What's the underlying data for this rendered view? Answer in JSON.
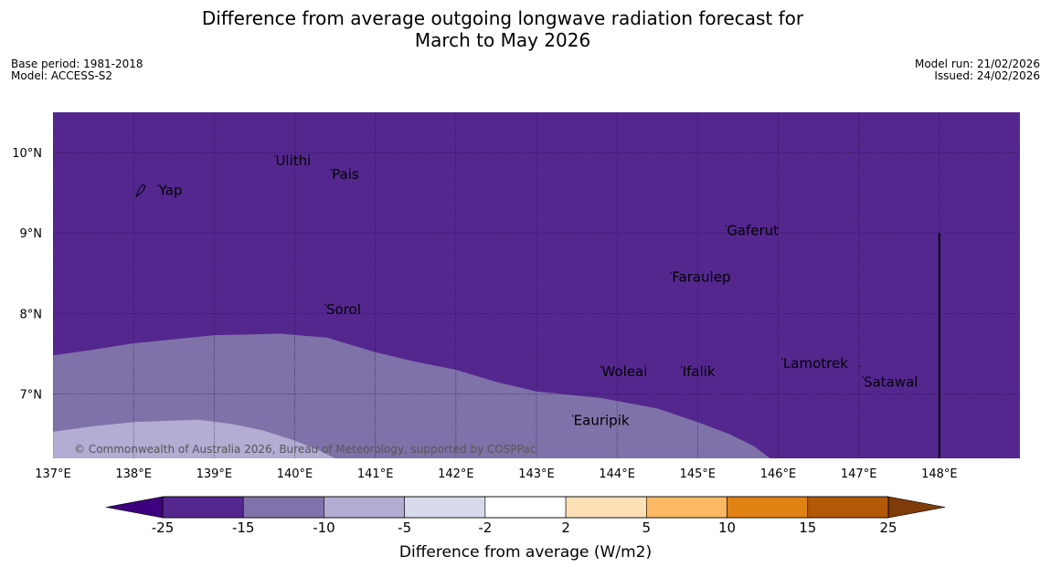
{
  "title": {
    "line1": "Difference from average outgoing longwave radiation forecast for",
    "line2": "March to May 2026"
  },
  "meta": {
    "base_period": "Base period: 1981-2018",
    "model": "Model: ACCESS-S2",
    "model_run": "Model run: 21/02/2026",
    "issued": "Issued: 24/02/2026"
  },
  "map": {
    "lon_range": [
      137,
      149
    ],
    "lat_range": [
      6.2,
      10.5
    ],
    "lon_ticks": [
      {
        "value": 137,
        "label": "137°E"
      },
      {
        "value": 138,
        "label": "138°E"
      },
      {
        "value": 139,
        "label": "139°E"
      },
      {
        "value": 140,
        "label": "140°E"
      },
      {
        "value": 141,
        "label": "141°E"
      },
      {
        "value": 142,
        "label": "142°E"
      },
      {
        "value": 143,
        "label": "143°E"
      },
      {
        "value": 144,
        "label": "144°E"
      },
      {
        "value": 145,
        "label": "145°E"
      },
      {
        "value": 146,
        "label": "146°E"
      },
      {
        "value": 147,
        "label": "147°E"
      },
      {
        "value": 148,
        "label": "148°E"
      }
    ],
    "lat_ticks": [
      {
        "value": 7,
        "label": "7°N"
      },
      {
        "value": 8,
        "label": "8°N"
      },
      {
        "value": 9,
        "label": "9°N"
      },
      {
        "value": 10,
        "label": "10°N"
      }
    ],
    "background_color": "#54278f",
    "places": [
      {
        "name": "Ulithi",
        "lon": 139.75,
        "lat": 9.9
      },
      {
        "name": "Pais",
        "lon": 140.45,
        "lat": 9.73
      },
      {
        "name": "Yap",
        "lon": 138.3,
        "lat": 9.53
      },
      {
        "name": "Gaferut",
        "lon": 145.35,
        "lat": 9.03
      },
      {
        "name": "Faraulep",
        "lon": 144.67,
        "lat": 8.45
      },
      {
        "name": "Sorol",
        "lon": 140.38,
        "lat": 8.05
      },
      {
        "name": "Lamotrek",
        "lon": 146.05,
        "lat": 7.38
      },
      {
        "name": "Woleai",
        "lon": 143.8,
        "lat": 7.28
      },
      {
        "name": "Ifalik",
        "lon": 144.8,
        "lat": 7.28
      },
      {
        "name": "Satawal",
        "lon": 147.05,
        "lat": 7.15
      },
      {
        "name": "Eauripik",
        "lon": 143.45,
        "lat": 6.67
      }
    ],
    "regions": [
      {
        "range": "-15 to -10",
        "color": "#7f72a8",
        "polygon": [
          [
            137,
            7.48
          ],
          [
            137.5,
            7.55
          ],
          [
            138,
            7.63
          ],
          [
            138.5,
            7.68
          ],
          [
            139,
            7.73
          ],
          [
            139.5,
            7.74
          ],
          [
            139.8,
            7.75
          ],
          [
            140.4,
            7.7
          ],
          [
            141,
            7.52
          ],
          [
            141.5,
            7.4
          ],
          [
            142,
            7.3
          ],
          [
            142.5,
            7.15
          ],
          [
            143,
            7.03
          ],
          [
            143.8,
            6.95
          ],
          [
            144.5,
            6.82
          ],
          [
            145,
            6.65
          ],
          [
            145.4,
            6.5
          ],
          [
            145.7,
            6.35
          ],
          [
            145.9,
            6.2
          ],
          [
            137,
            6.2
          ]
        ]
      },
      {
        "range": "-10 to -5",
        "color": "#b3acd3",
        "polygon": [
          [
            137,
            6.53
          ],
          [
            137.5,
            6.6
          ],
          [
            138,
            6.65
          ],
          [
            138.5,
            6.67
          ],
          [
            138.8,
            6.68
          ],
          [
            139.2,
            6.63
          ],
          [
            139.6,
            6.55
          ],
          [
            140,
            6.42
          ],
          [
            140.3,
            6.3
          ],
          [
            140.5,
            6.2
          ],
          [
            137,
            6.2
          ]
        ]
      }
    ],
    "boundary_line": {
      "lon": 148,
      "lat_from": 6.2,
      "lat_to": 9.0
    },
    "copyright": "© Commonwealth of Australia 2026, Bureau of Meteorology, supported by COSPPac"
  },
  "colorbar": {
    "label": "Difference from average (W/m2)",
    "under_color": "#3f007d",
    "over_color": "#7f3b08",
    "bins": [
      {
        "from": -25,
        "to": -15,
        "color": "#54278f"
      },
      {
        "from": -15,
        "to": -10,
        "color": "#8073ac"
      },
      {
        "from": -10,
        "to": -5,
        "color": "#b2abd2"
      },
      {
        "from": -5,
        "to": -2,
        "color": "#d8daeb"
      },
      {
        "from": -2,
        "to": 2,
        "color": "#ffffff"
      },
      {
        "from": 2,
        "to": 5,
        "color": "#fee0b6"
      },
      {
        "from": 5,
        "to": 10,
        "color": "#fdb863"
      },
      {
        "from": 10,
        "to": 15,
        "color": "#e08214"
      },
      {
        "from": 15,
        "to": 25,
        "color": "#b35806"
      }
    ],
    "tick_labels": [
      "-25",
      "-15",
      "-10",
      "-5",
      "-2",
      "2",
      "5",
      "10",
      "15",
      "25"
    ]
  }
}
